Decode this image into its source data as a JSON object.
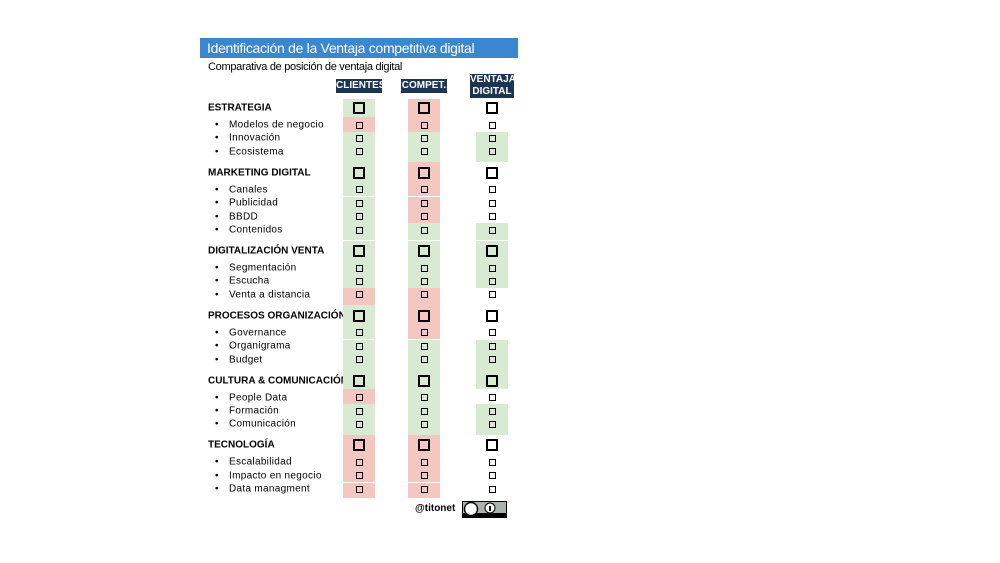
{
  "header": {
    "title": "Identificación de la Ventaja competitiva digital",
    "subtitle": "Comparativa de posición de ventaja digital"
  },
  "columns": [
    "CLIENTES",
    "COMPET.",
    "VENTAJA DIGITAL"
  ],
  "colors": {
    "green": "#d9ead3",
    "red": "#f4c7c3"
  },
  "sections": [
    {
      "title": "ESTRATEGIA",
      "fills": [
        "green",
        "red",
        null
      ],
      "items": [
        {
          "label": "Modelos de negocio",
          "fills": [
            "red",
            "red",
            null
          ]
        },
        {
          "label": "Innovación",
          "fills": [
            "green",
            "green",
            "green"
          ]
        },
        {
          "label": "Ecosistema",
          "fills": [
            "green",
            "green",
            "green"
          ]
        }
      ]
    },
    {
      "title": "MARKETING DIGITAL",
      "fills": [
        "green",
        "red",
        null
      ],
      "items": [
        {
          "label": "Canales",
          "fills": [
            "green",
            "red",
            null
          ]
        },
        {
          "label": "Publicidad",
          "fills": [
            "green",
            "red",
            null
          ]
        },
        {
          "label": "BBDD",
          "fills": [
            "green",
            "red",
            null
          ]
        },
        {
          "label": "Contenidos",
          "fills": [
            "green",
            "green",
            "green"
          ]
        }
      ]
    },
    {
      "title": "DIGITALIZACIÓN VENTA",
      "fills": [
        "green",
        "green",
        "green"
      ],
      "items": [
        {
          "label": "Segmentación",
          "fills": [
            "green",
            "green",
            "green"
          ]
        },
        {
          "label": "Escucha",
          "fills": [
            "green",
            "green",
            "green"
          ]
        },
        {
          "label": "Venta a distancia",
          "fills": [
            "red",
            "red",
            null
          ]
        }
      ]
    },
    {
      "title": "PROCESOS ORGANIZACIÓN",
      "fills": [
        "green",
        "red",
        null
      ],
      "items": [
        {
          "label": "Governance",
          "fills": [
            "green",
            "red",
            null
          ]
        },
        {
          "label": "Organigrama",
          "fills": [
            "green",
            "green",
            "green"
          ]
        },
        {
          "label": "Budget",
          "fills": [
            "green",
            "green",
            "green"
          ]
        }
      ]
    },
    {
      "title": "CULTURA & COMUNICACIÓN",
      "fills": [
        "green",
        "green",
        "green"
      ],
      "items": [
        {
          "label": "People Data",
          "fills": [
            "red",
            "green",
            null
          ]
        },
        {
          "label": "Formación",
          "fills": [
            "green",
            "green",
            "green"
          ]
        },
        {
          "label": "Comunicación",
          "fills": [
            "green",
            "green",
            "green"
          ]
        }
      ]
    },
    {
      "title": "TECNOLOGÍA",
      "fills": [
        "red",
        "red",
        null
      ],
      "items": [
        {
          "label": "Escalabilidad",
          "fills": [
            "red",
            "red",
            null
          ]
        },
        {
          "label": "Impacto en negocio",
          "fills": [
            "red",
            "red",
            null
          ]
        },
        {
          "label": "Data managment",
          "fills": [
            "red",
            "red",
            null
          ]
        }
      ]
    }
  ],
  "footer": {
    "handle": "@titonet"
  }
}
